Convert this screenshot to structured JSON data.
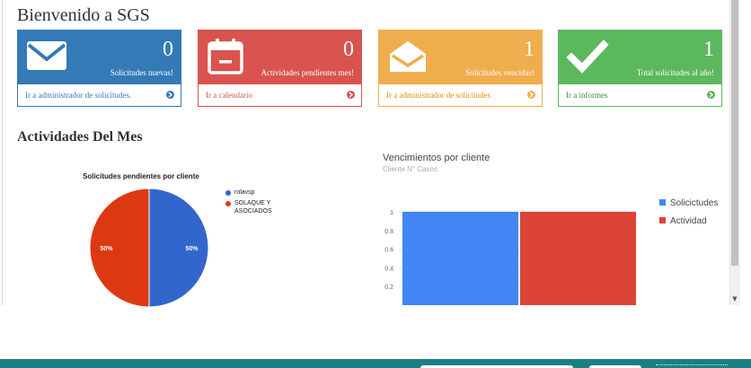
{
  "page": {
    "title": "Bienvenido a SGS"
  },
  "cards": [
    {
      "count": "0",
      "label": "Solicitudes nuevas!",
      "link": "Ir a administrador de solicitudes.",
      "icon": "envelope-icon",
      "color": "#337ab7"
    },
    {
      "count": "0",
      "label": "Actividades pendientes mes!",
      "link": "Ir a calendario",
      "icon": "calendar-icon",
      "color": "#d9534f"
    },
    {
      "count": "1",
      "label": "Solicitudes vencidas!",
      "link": "Ir a administrador de solicitudes",
      "icon": "envelope-open-icon",
      "color": "#f0ad4e"
    },
    {
      "count": "1",
      "label": "Total solicitudes al año!",
      "link": "Ir a informes",
      "icon": "check-icon",
      "color": "#5cb85c"
    }
  ],
  "section": {
    "title": "Actividades Del Mes"
  },
  "chart_data": [
    {
      "type": "pie",
      "title": "Solicitudes pendientes por cliente",
      "categories": [
        "rolavsp",
        "SOLAQUE Y ASOCIADOS"
      ],
      "values": [
        50,
        50
      ],
      "labels": [
        "50%",
        "50%"
      ],
      "colors": [
        "#3366cc",
        "#dc3912"
      ],
      "legend": "right"
    },
    {
      "type": "bar",
      "title": "Vencimientos por cliente",
      "subtitle": "Cliente N° Casos",
      "series": [
        {
          "name": "Solicictudes",
          "values": [
            1
          ],
          "color": "#4285f4"
        },
        {
          "name": "Actividad",
          "values": [
            1
          ],
          "color": "#db4437"
        }
      ],
      "yticks": [
        "0.2",
        "0.4",
        "0.6",
        "0.8",
        "1"
      ],
      "ylim": [
        0,
        1
      ],
      "grid": true,
      "legend": "right"
    }
  ]
}
